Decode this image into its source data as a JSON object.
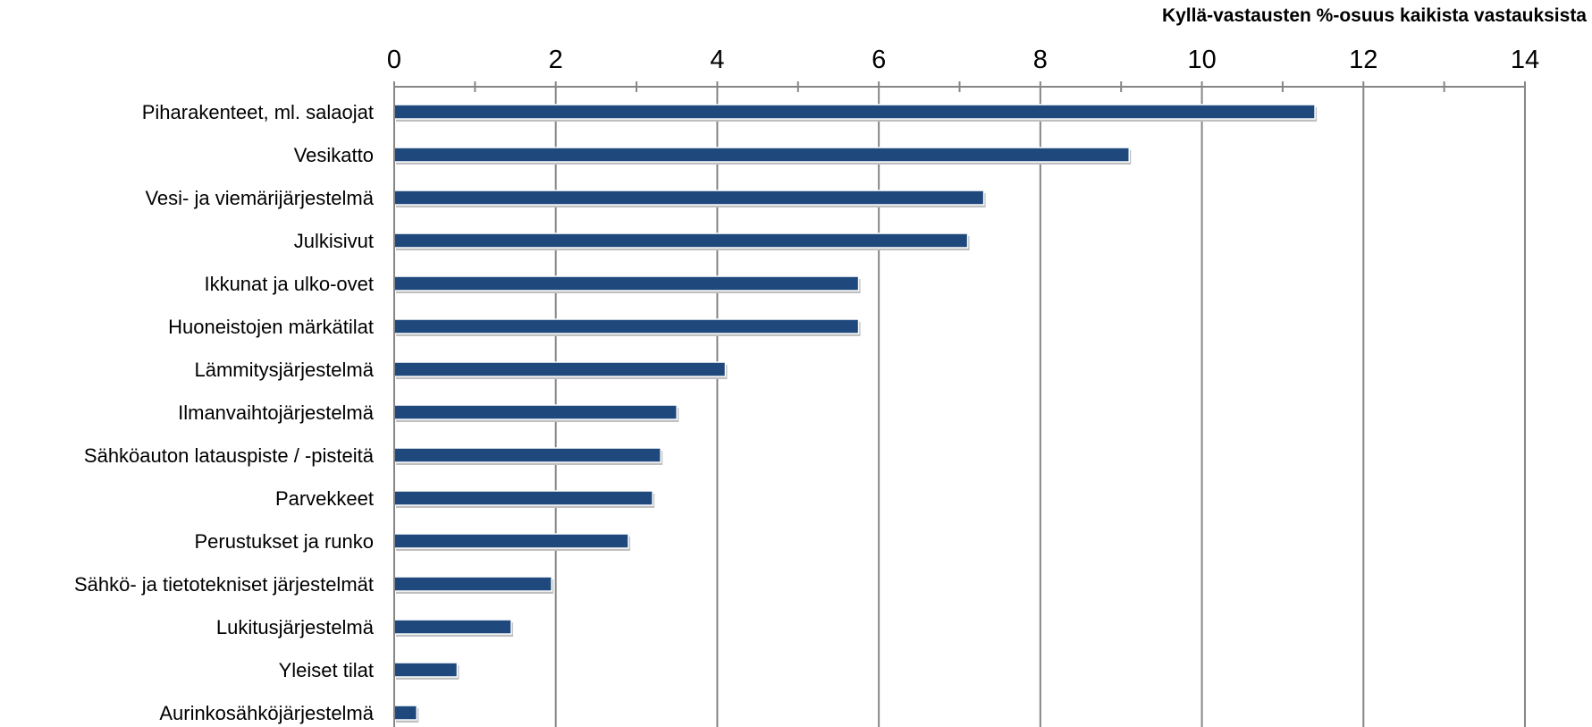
{
  "chart_data": {
    "type": "bar",
    "orientation": "horizontal",
    "xlabel": "Kyllä-vastausten %-osuus kaikista vastauksista",
    "xlim": [
      0,
      14
    ],
    "xticks": [
      0,
      2,
      4,
      6,
      8,
      10,
      12,
      14
    ],
    "xtick_labels": [
      "0",
      "2",
      "4",
      "6",
      "8",
      "10",
      "12",
      "14"
    ],
    "grid": true,
    "bar_color": "#1F497D",
    "categories": [
      "Piharakenteet, ml. salaojat",
      "Vesikatto",
      "Vesi- ja viemärijärjestelmä",
      "Julkisivut",
      "Ikkunat ja ulko-ovet",
      "Huoneistojen märkätilat",
      "Lämmitysjärjestelmä",
      "Ilmanvaihtojärjestelmä",
      "Sähköauton latauspiste / -pisteitä",
      "Parvekkeet",
      "Perustukset ja runko",
      "Sähkö- ja tietotekniset järjestelmät",
      "Lukitusjärjestelmä",
      "Yleiset tilat",
      "Aurinkosähköjärjestelmä"
    ],
    "values": [
      11.4,
      9.1,
      7.3,
      7.1,
      5.75,
      5.75,
      4.1,
      3.5,
      3.3,
      3.2,
      2.9,
      1.95,
      1.45,
      0.78,
      0.28
    ]
  }
}
